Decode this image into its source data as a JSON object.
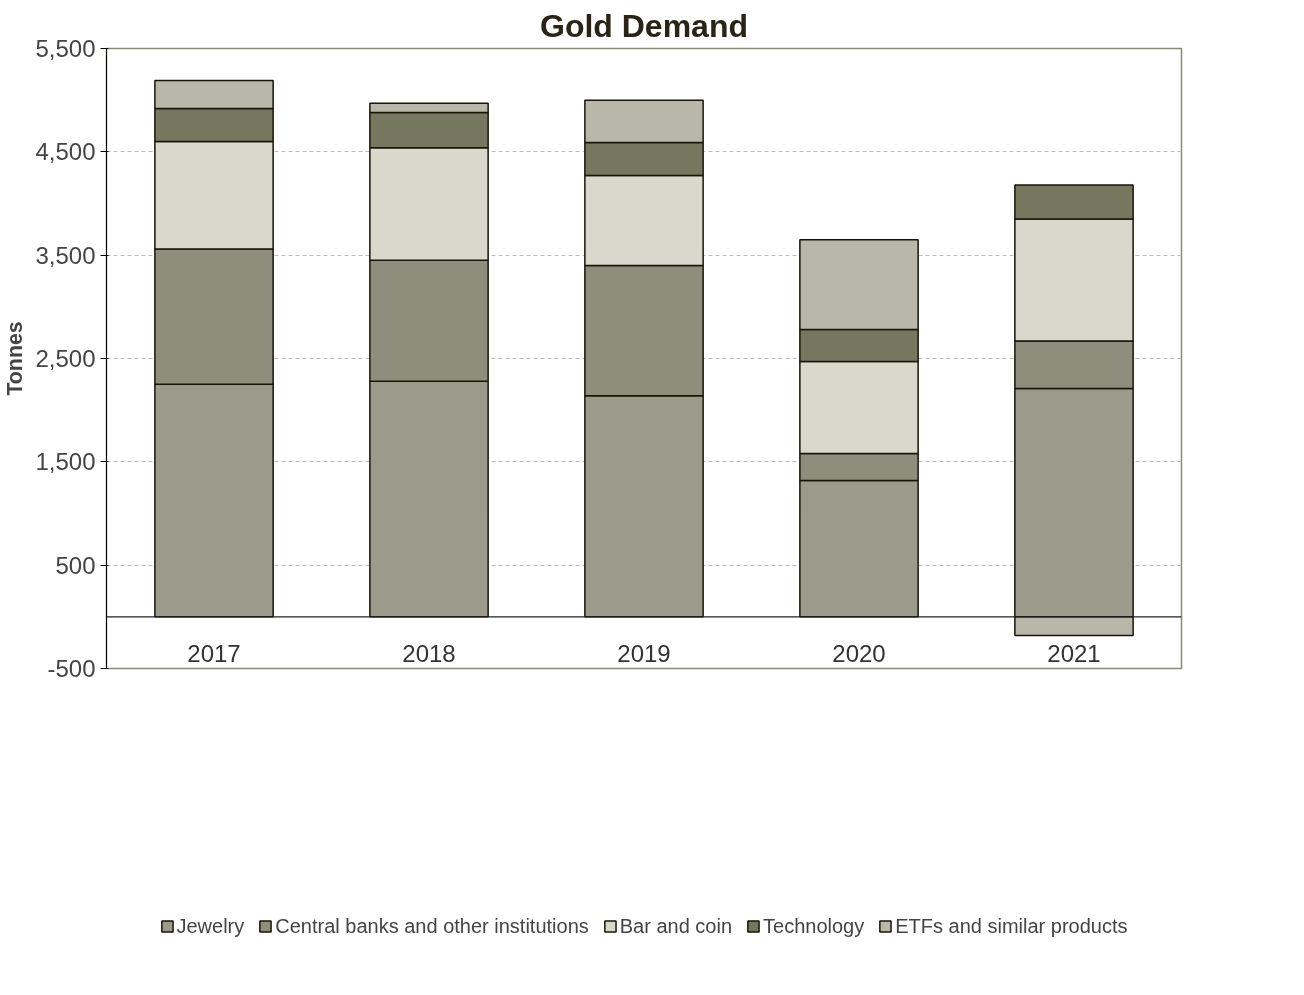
{
  "chart_data": {
    "type": "bar",
    "title": "Gold Demand",
    "ylabel": "Tonnes",
    "stacked": true,
    "categories": [
      "2017",
      "2018",
      "2019",
      "2020",
      "2021"
    ],
    "series": [
      {
        "name": "Jewelry",
        "color": "#9c9a8a",
        "values": [
          2250,
          2280,
          2140,
          1320,
          2210
        ]
      },
      {
        "name": "Central banks and other institutions",
        "color": "#8f8d7c",
        "values": [
          1310,
          1170,
          1260,
          260,
          460
        ]
      },
      {
        "name": "Bar and coin",
        "color": "#d9d8cc",
        "values": [
          1040,
          1090,
          870,
          890,
          1180
        ]
      },
      {
        "name": "Technology",
        "color": "#76775f",
        "values": [
          320,
          340,
          320,
          310,
          330
        ]
      },
      {
        "name": "ETFs and similar products",
        "color": "#b8b7aa",
        "values": [
          270,
          90,
          410,
          870,
          -180
        ]
      }
    ],
    "ylim": [
      -500,
      5500
    ],
    "yticks": [
      -500,
      500,
      {
        "value": 1500,
        "label": "1,500"
      },
      {
        "value": 2500,
        "label": "2,500"
      },
      {
        "value": 3500,
        "label": "3,500"
      },
      {
        "value": 4500,
        "label": "4,500"
      },
      {
        "value": 5500,
        "label": "5,500"
      }
    ],
    "grid": "y",
    "legend": "bottom"
  }
}
